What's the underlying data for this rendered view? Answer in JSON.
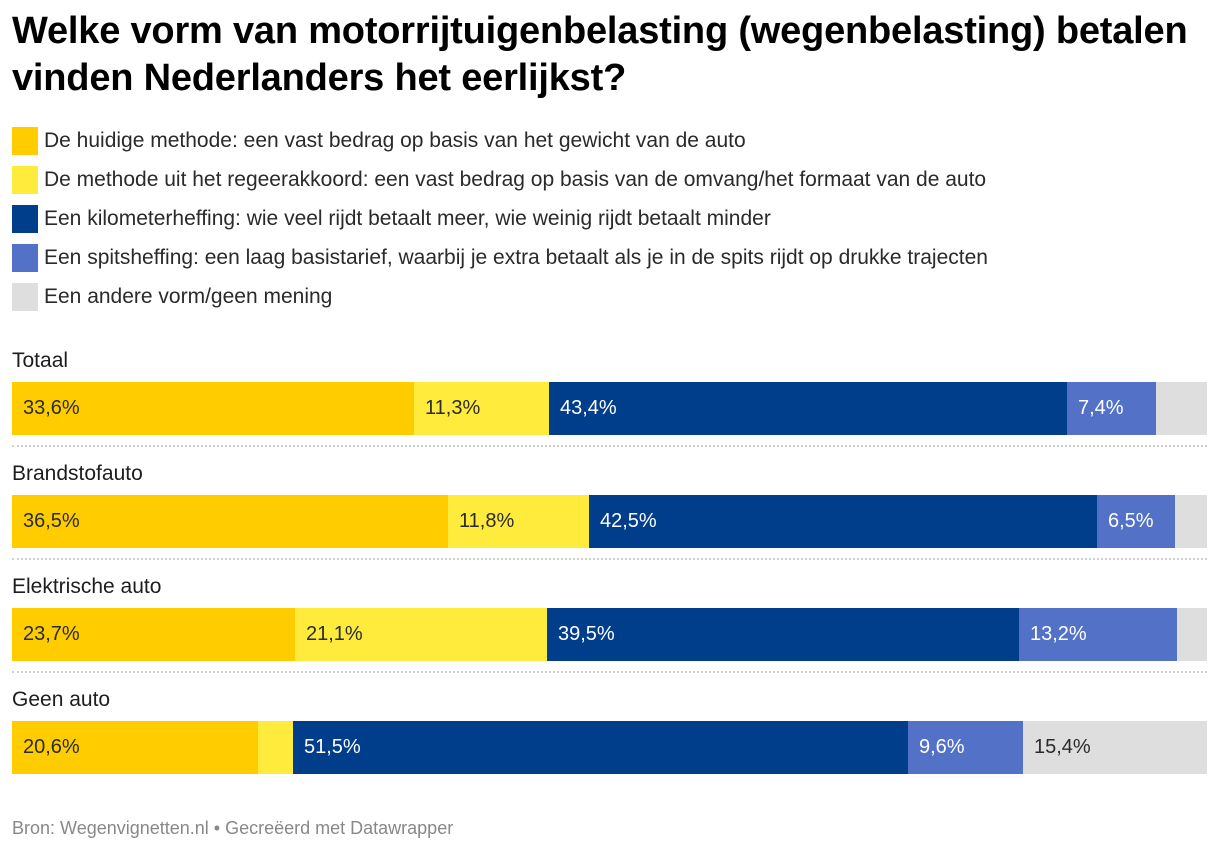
{
  "title": "Welke vorm van motorrijtuigenbelasting (wegenbelasting) betalen vinden Nederlanders het eerlijkst?",
  "source": "Bron: Wegenvignetten.nl • Gecreëerd met Datawrapper",
  "colors": {
    "huidig": "#ffcc00",
    "regeerakkoord": "#ffeb3b",
    "km": "#003d8a",
    "spits": "#5271c7",
    "anders": "#dedede",
    "text_dark": "#2b2b2b",
    "text_light": "#ffffff"
  },
  "chart_data": {
    "type": "bar",
    "orientation": "horizontal",
    "stacked": true,
    "unit": "%",
    "xlim": [
      0,
      100
    ],
    "legend_position": "top",
    "categories": [
      "Totaal",
      "Brandstofauto",
      "Elektrische auto",
      "Geen auto"
    ],
    "series": [
      {
        "key": "huidig",
        "name": "De huidige methode: een vast bedrag op basis van het gewicht van de auto",
        "values": [
          33.6,
          36.5,
          23.7,
          20.6
        ],
        "labels": [
          "33,6%",
          "36,5%",
          "23,7%",
          "20,6%"
        ]
      },
      {
        "key": "regeerakkoord",
        "name": "De methode uit het regeerakkoord: een vast bedrag op basis van de omvang/het formaat van de auto",
        "values": [
          11.3,
          11.8,
          21.1,
          2.9
        ],
        "labels": [
          "11,3%",
          "11,8%",
          "21,1%",
          ""
        ]
      },
      {
        "key": "km",
        "name": "Een kilometerheffing: wie veel rijdt betaalt meer, wie weinig rijdt betaalt minder",
        "values": [
          43.4,
          42.5,
          39.5,
          51.5
        ],
        "labels": [
          "43,4%",
          "42,5%",
          "39,5%",
          "51,5%"
        ]
      },
      {
        "key": "spits",
        "name": "Een spitsheffing: een laag basistarief, waarbij je extra betaalt als je in de spits rijdt op drukke trajecten",
        "values": [
          7.4,
          6.5,
          13.2,
          9.6
        ],
        "labels": [
          "7,4%",
          "6,5%",
          "13,2%",
          "9,6%"
        ]
      },
      {
        "key": "anders",
        "name": "Een andere vorm/geen mening",
        "values": [
          4.3,
          2.7,
          2.5,
          15.4
        ],
        "labels": [
          "",
          "",
          "",
          "15,4%"
        ]
      }
    ]
  }
}
